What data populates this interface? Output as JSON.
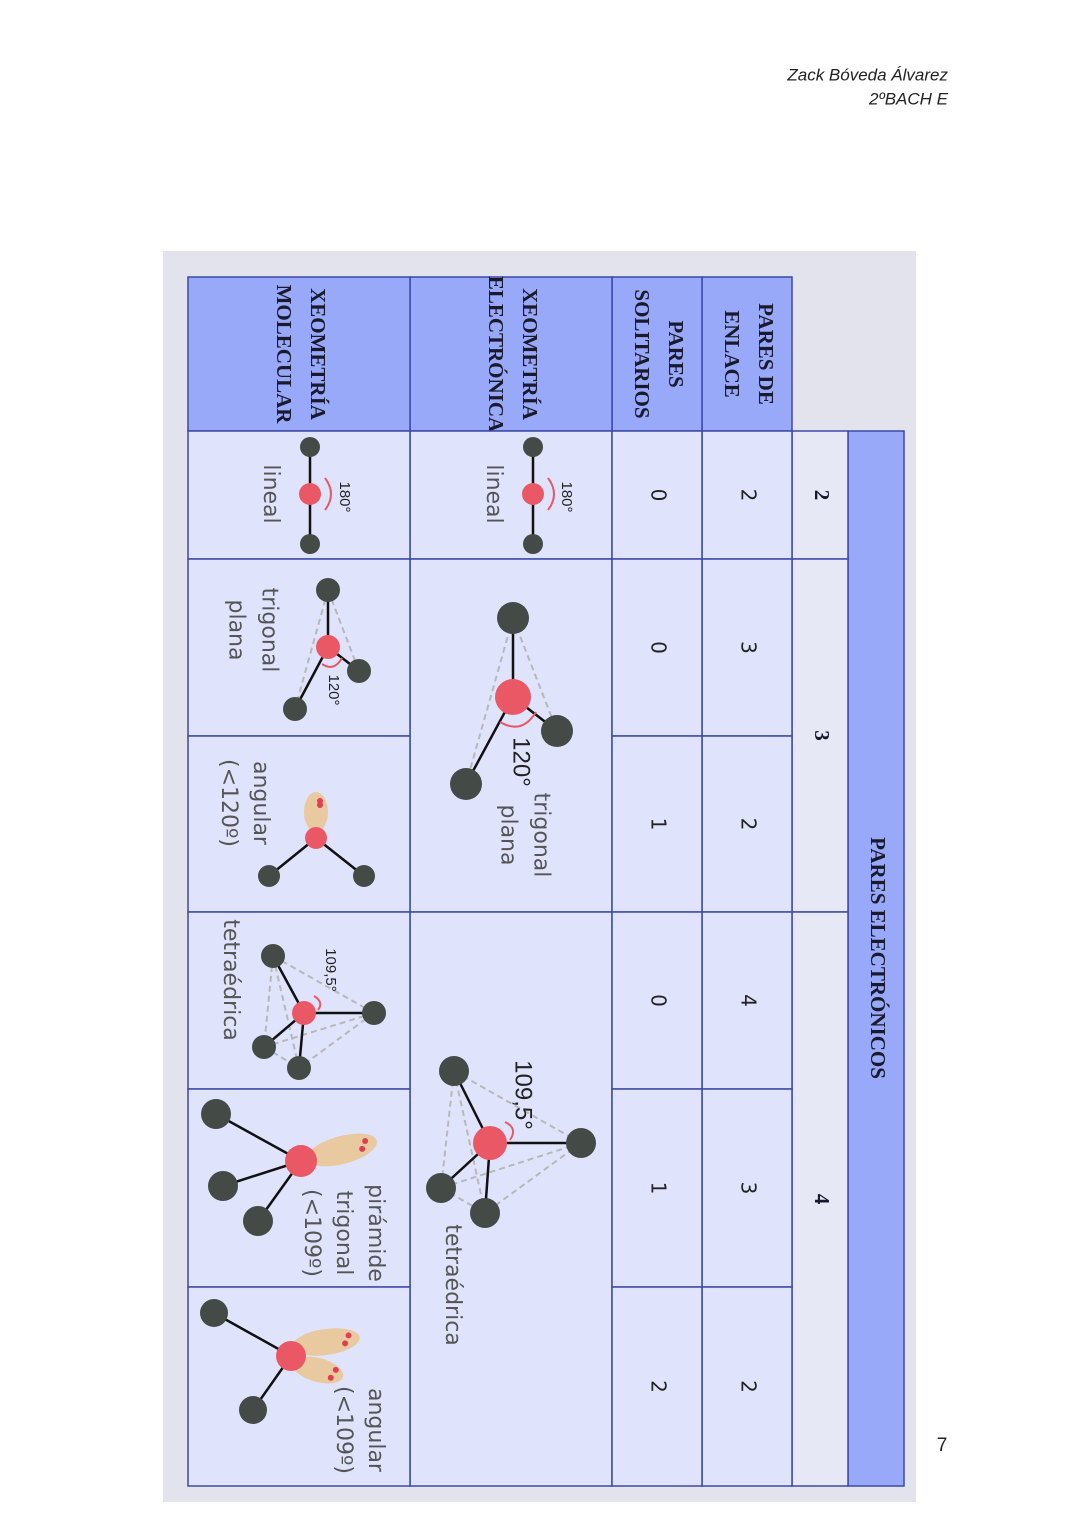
{
  "header": {
    "author": "Zack Bóveda Álvarez",
    "class": "2ºBACH E"
  },
  "page_number": "7",
  "table": {
    "title": "PARES ELECTRÓNICOS",
    "row_labels": [
      [
        "PARES DE",
        "ENLACE"
      ],
      [
        "PARES",
        "SOLITARIOS"
      ],
      [
        "XEOMETRÍA",
        "ELECTRÓNICA"
      ],
      [
        "XEOMETRÍA",
        "MOLECULAR"
      ]
    ],
    "groups": [
      {
        "electron_pairs": 2,
        "electronic_geometry": [
          "lineal"
        ],
        "angle": "180°",
        "columns": [
          {
            "bonding": 2,
            "lone": 0,
            "molecular_geometry": [
              "lineal"
            ],
            "angle": "180°"
          }
        ]
      },
      {
        "electron_pairs": 3,
        "electronic_geometry": [
          "trigonal",
          "plana"
        ],
        "angle": "120°",
        "columns": [
          {
            "bonding": 3,
            "lone": 0,
            "molecular_geometry": [
              "trigonal",
              "plana"
            ],
            "angle": "120°"
          },
          {
            "bonding": 2,
            "lone": 1,
            "molecular_geometry": [
              "angular",
              "(<120º)"
            ]
          }
        ]
      },
      {
        "electron_pairs": 4,
        "electronic_geometry": [
          "tetraédrica"
        ],
        "angle": "109,5°",
        "columns": [
          {
            "bonding": 4,
            "lone": 0,
            "molecular_geometry": [
              "tetraédrica"
            ],
            "angle": "109,5°"
          },
          {
            "bonding": 3,
            "lone": 1,
            "molecular_geometry": [
              "pirámide",
              "trigonal",
              "(<109º)"
            ]
          },
          {
            "bonding": 2,
            "lone": 2,
            "molecular_geometry": [
              "angular",
              "(<109º)"
            ]
          }
        ]
      }
    ]
  }
}
